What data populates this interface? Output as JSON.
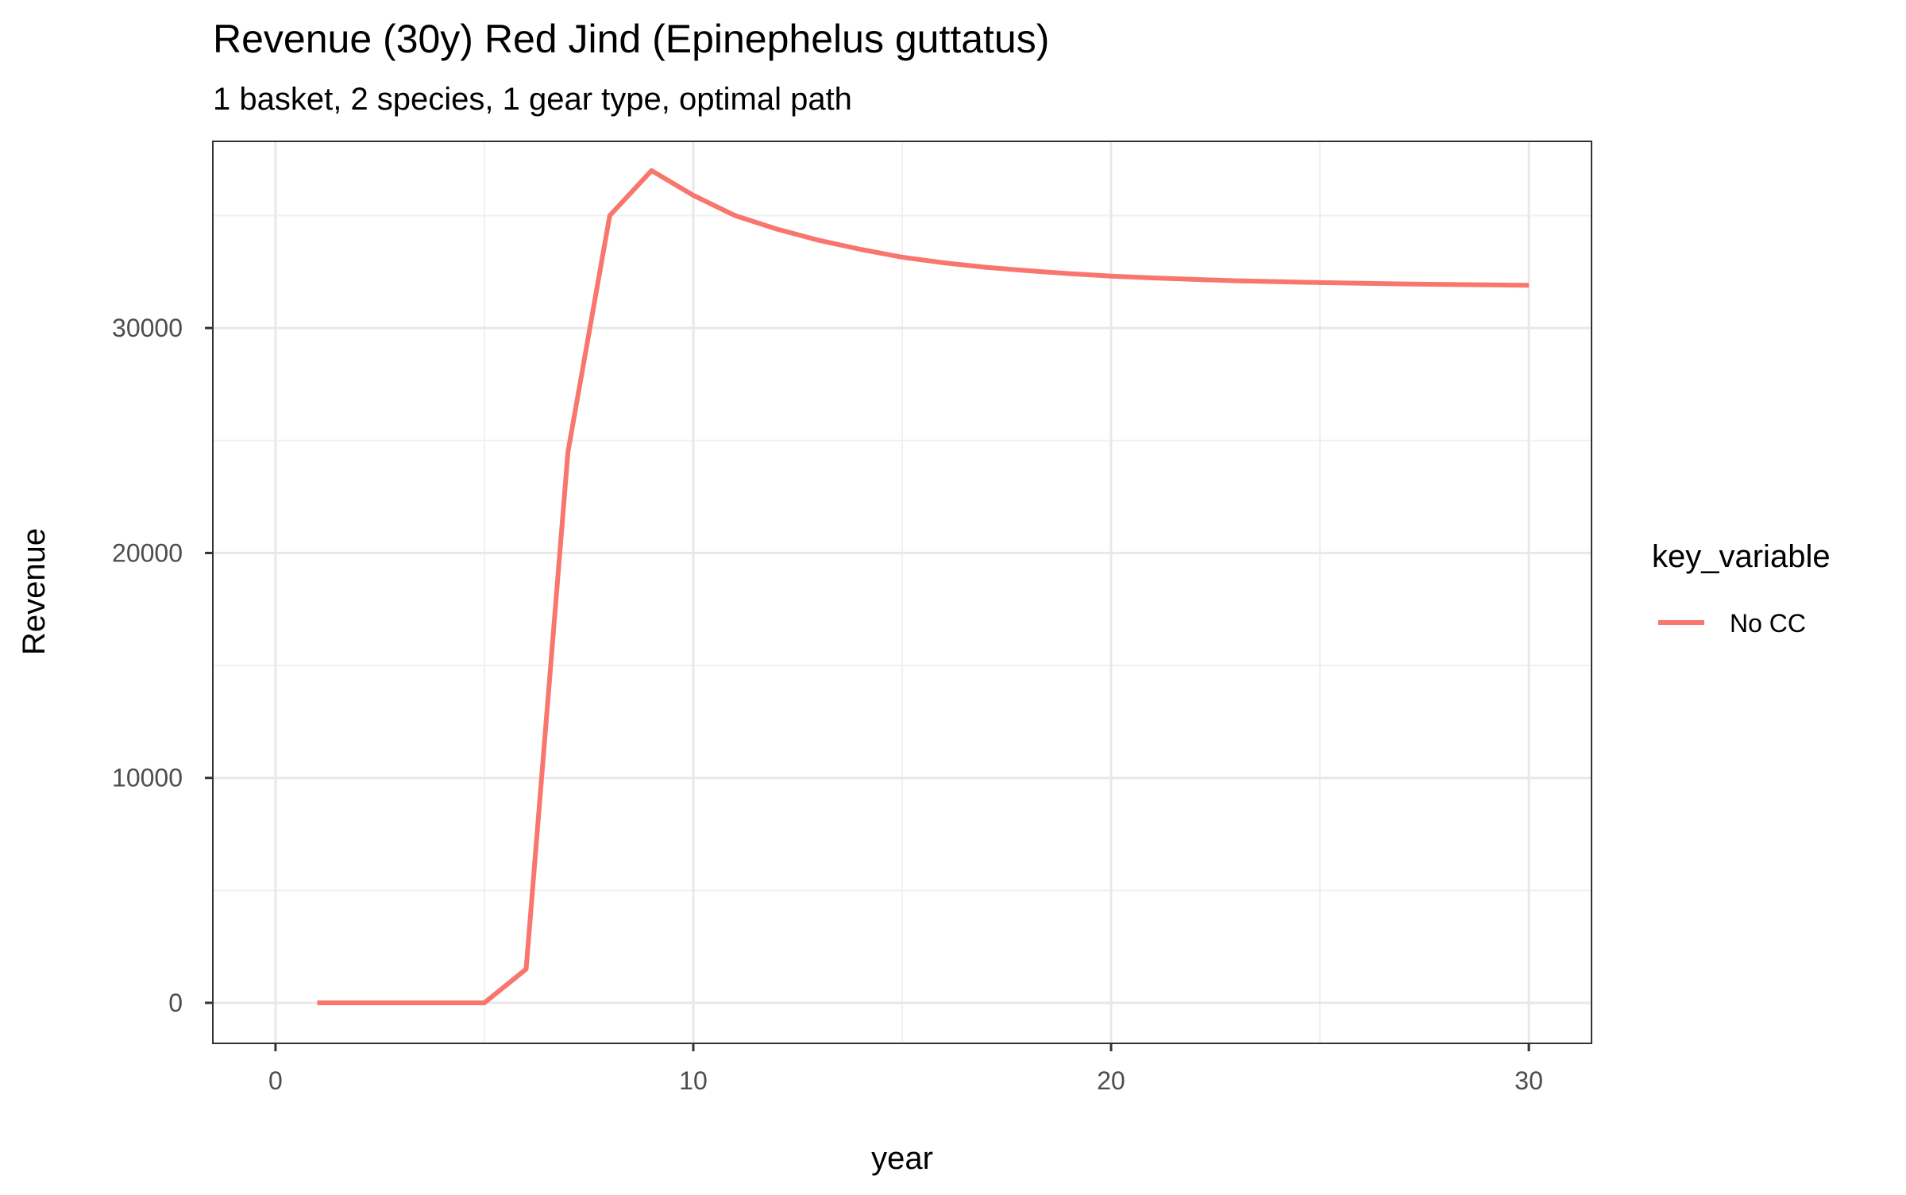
{
  "chart_data": {
    "type": "line",
    "title": "Revenue (30y) Red Jind (Epinephelus guttatus)",
    "subtitle": "1 basket, 2 species, 1 gear type, optimal path",
    "xlabel": "year",
    "ylabel": "Revenue",
    "xlim": [
      -1.5,
      31.5
    ],
    "ylim": [
      -1800,
      38300
    ],
    "x_ticks": [
      0,
      10,
      20,
      30
    ],
    "y_ticks": [
      0,
      10000,
      20000,
      30000
    ],
    "x_tick_labels": [
      "0",
      "10",
      "20",
      "30"
    ],
    "y_tick_labels": [
      "0",
      "10000",
      "20000",
      "30000"
    ],
    "grid": true,
    "legend": {
      "title": "key_variable",
      "position": "right"
    },
    "series": [
      {
        "name": "No CC",
        "color": "#f8766d",
        "x": [
          1,
          2,
          3,
          4,
          5,
          6,
          7,
          8,
          9,
          10,
          11,
          12,
          13,
          14,
          15,
          16,
          17,
          18,
          19,
          20,
          21,
          22,
          23,
          24,
          25,
          26,
          27,
          28,
          29,
          30
        ],
        "values": [
          0,
          0,
          0,
          0,
          0,
          1500,
          24500,
          35000,
          37000,
          35900,
          35000,
          34400,
          33900,
          33500,
          33150,
          32900,
          32700,
          32550,
          32420,
          32310,
          32230,
          32160,
          32100,
          32060,
          32020,
          31990,
          31960,
          31940,
          31920,
          31900
        ]
      }
    ]
  }
}
